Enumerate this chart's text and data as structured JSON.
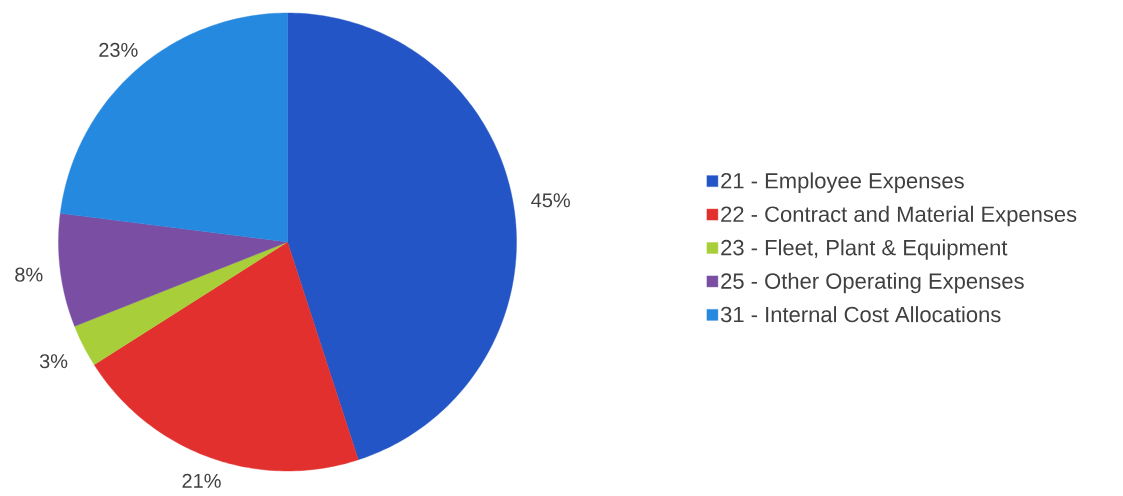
{
  "chart_data": {
    "type": "pie",
    "categories": [
      "21 - Employee Expenses",
      "22 - Contract and Material Expenses",
      "23 - Fleet, Plant & Equipment",
      "25 - Other Operating Expenses",
      "31 - Internal Cost Allocations"
    ],
    "values": [
      45,
      21,
      3,
      8,
      23
    ],
    "colors": [
      "#2355c6",
      "#e1302d",
      "#a8cf3a",
      "#7a4fa3",
      "#2589e0"
    ],
    "value_labels": [
      "45%",
      "21%",
      "3%",
      "8%",
      "23%"
    ],
    "legend": "right"
  }
}
